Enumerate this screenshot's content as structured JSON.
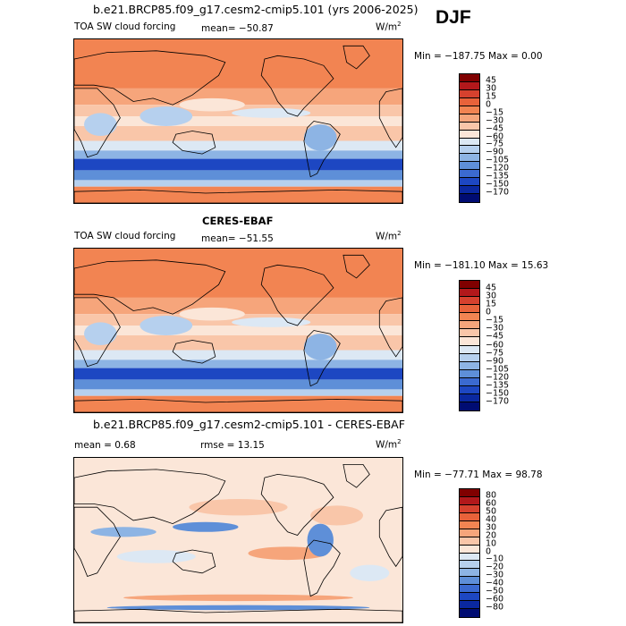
{
  "season": "DJF",
  "colors": {
    "cloud_forcing_levels": [
      "#800000",
      "#b2181b",
      "#d6412e",
      "#e8623a",
      "#f28452",
      "#f6a57b",
      "#f9c6a9",
      "#fbe6d8",
      "#dce8f4",
      "#b6d0ee",
      "#8db4e4",
      "#5e8fd8",
      "#3b6ad0",
      "#1d47c2",
      "#0a28a0",
      "#000c72"
    ],
    "diff_levels": [
      "#800000",
      "#b2181b",
      "#d6412e",
      "#e8623a",
      "#f28452",
      "#f6a57b",
      "#f9c6a9",
      "#fbe6d8",
      "#dce8f4",
      "#b6d0ee",
      "#8db4e4",
      "#5e8fd8",
      "#3b6ad0",
      "#1d47c2",
      "#0a28a0",
      "#000c72"
    ],
    "land_outline": "#000000",
    "frame": "#000000"
  },
  "panels": [
    {
      "title": "b.e21.BRCP85.f09_g17.cesm2-cmip5.101 (yrs 2006-2025)",
      "left_label": "TOA SW cloud forcing",
      "mean_label": "mean= −50.87",
      "rmse_label": "",
      "units": "W/m",
      "units_sup": "2",
      "minmax": "Min = −187.75 Max =   0.00",
      "colorbar_labels": [
        "45",
        "30",
        "15",
        "0",
        "−15",
        "−30",
        "−45",
        "−60",
        "−75",
        "−90",
        "−105",
        "−120",
        "−135",
        "−150",
        "−170"
      ],
      "field": "model"
    },
    {
      "title": "CERES-EBAF",
      "left_label": "TOA SW cloud forcing",
      "mean_label": "mean= −51.55",
      "rmse_label": "",
      "units": "W/m",
      "units_sup": "2",
      "minmax": "Min = −181.10 Max =  15.63",
      "colorbar_labels": [
        "45",
        "30",
        "15",
        "0",
        "−15",
        "−30",
        "−45",
        "−60",
        "−75",
        "−90",
        "−105",
        "−120",
        "−135",
        "−150",
        "−170"
      ],
      "field": "obs"
    },
    {
      "title": "b.e21.BRCP85.f09_g17.cesm2-cmip5.101 - CERES-EBAF",
      "left_label": "mean =    0.68",
      "mean_label": "",
      "rmse_label": "rmse =   13.15",
      "units": "W/m",
      "units_sup": "2",
      "minmax": "Min = −77.71 Max =  98.78",
      "colorbar_labels": [
        "80",
        "60",
        "50",
        "40",
        "30",
        "20",
        "10",
        "0",
        "−10",
        "−20",
        "−30",
        "−40",
        "−50",
        "−60",
        "−80"
      ],
      "field": "diff"
    }
  ],
  "chart_data": [
    {
      "type": "heatmap",
      "title": "b.e21.BRCP85.f09_g17.cesm2-cmip5.101 (yrs 2006-2025)",
      "variable": "TOA SW cloud forcing",
      "units": "W/m2",
      "mean": -50.87,
      "min": -187.75,
      "max": 0.0,
      "colorbar_levels": [
        45,
        30,
        15,
        0,
        -15,
        -30,
        -45,
        -60,
        -75,
        -90,
        -105,
        -120,
        -135,
        -150,
        -170
      ]
    },
    {
      "type": "heatmap",
      "title": "CERES-EBAF",
      "variable": "TOA SW cloud forcing",
      "units": "W/m2",
      "mean": -51.55,
      "min": -181.1,
      "max": 15.63,
      "colorbar_levels": [
        45,
        30,
        15,
        0,
        -15,
        -30,
        -45,
        -60,
        -75,
        -90,
        -105,
        -120,
        -135,
        -150,
        -170
      ]
    },
    {
      "type": "heatmap",
      "title": "b.e21.BRCP85.f09_g17.cesm2-cmip5.101 - CERES-EBAF",
      "units": "W/m2",
      "mean": 0.68,
      "rmse": 13.15,
      "min": -77.71,
      "max": 98.78,
      "colorbar_levels": [
        80,
        60,
        50,
        40,
        30,
        20,
        10,
        0,
        -10,
        -20,
        -30,
        -40,
        -50,
        -60,
        -80
      ]
    }
  ]
}
